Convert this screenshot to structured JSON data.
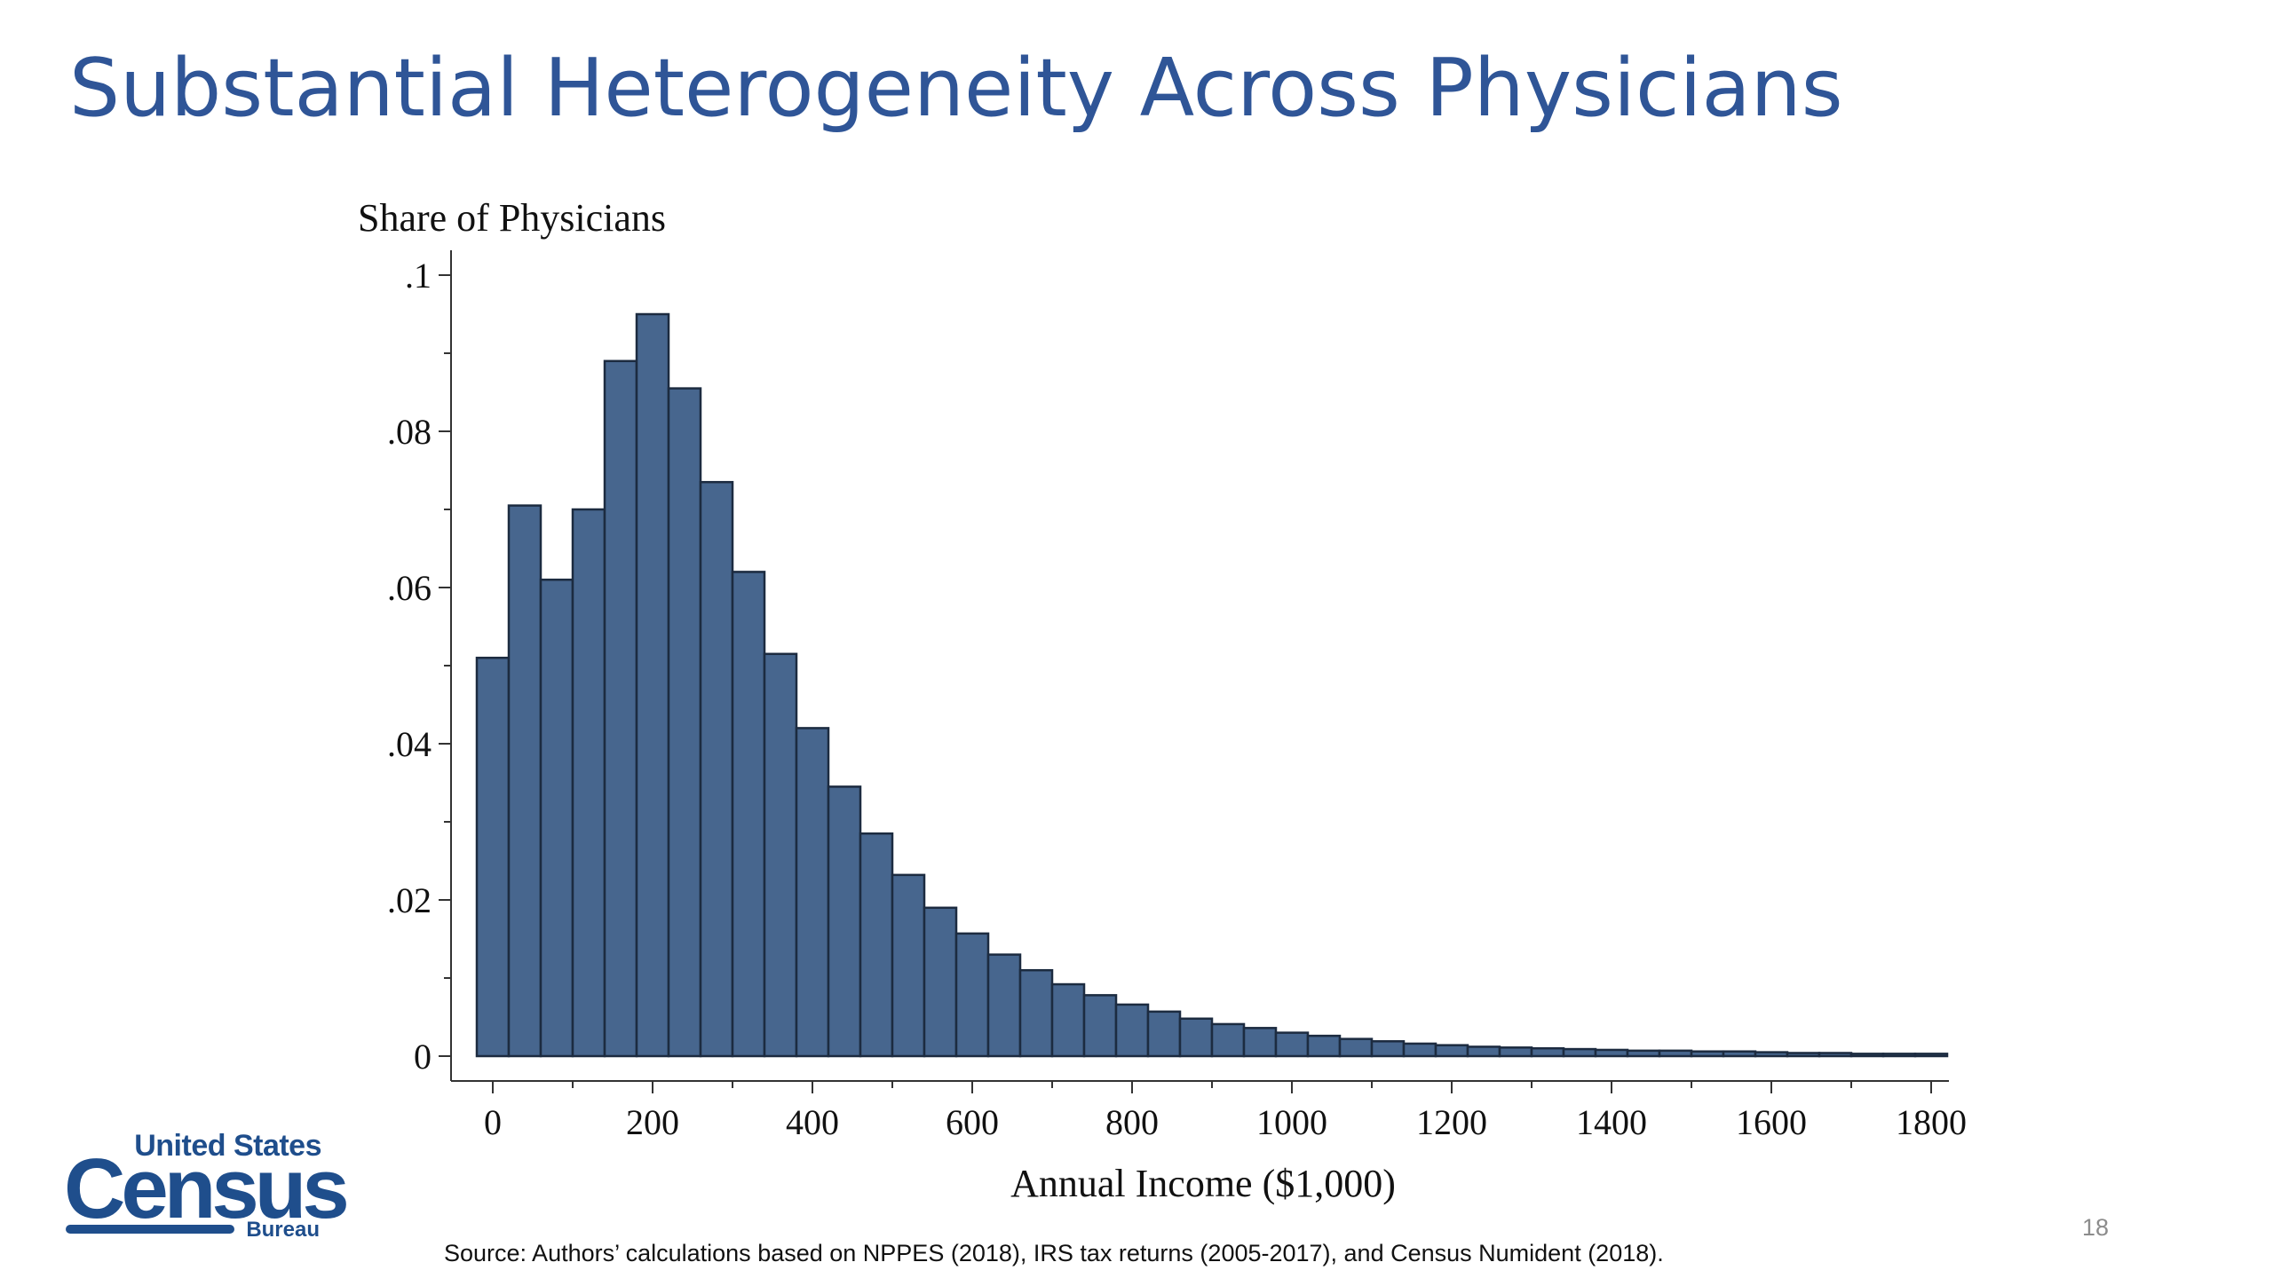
{
  "slide": {
    "title": "Substantial Heterogeneity Across Physicians",
    "source": "Source: Authors’ calculations based on NPPES (2018), IRS tax returns (2005-2017), and Census Numident (2018).",
    "page_number": "18"
  },
  "logo": {
    "line1": "United States",
    "word": "Census",
    "line3": "Bureau",
    "color": "#1F4E8C"
  },
  "colors": {
    "title": "#2F5597",
    "bar_fill": "#47668E",
    "bar_stroke": "#1C2B40"
  },
  "chart_data": {
    "type": "bar",
    "title": "",
    "xlabel": "Annual Income ($1,000)",
    "ylabel": "Share of Physicians",
    "xlim": [
      -20,
      1820
    ],
    "ylim": [
      0,
      0.1
    ],
    "bin_width": 40,
    "bin_start": -20,
    "x_ticks": [
      0,
      200,
      400,
      600,
      800,
      1000,
      1200,
      1400,
      1600,
      1800
    ],
    "x_tick_labels": [
      "0",
      "200",
      "400",
      "600",
      "800",
      "1000",
      "1200",
      "1400",
      "1600",
      "1800"
    ],
    "y_ticks": [
      0,
      0.02,
      0.04,
      0.06,
      0.08,
      0.1
    ],
    "y_tick_labels": [
      "0",
      ".02",
      ".04",
      ".06",
      ".08",
      ".1"
    ],
    "grid": false,
    "values": [
      0.051,
      0.0705,
      0.061,
      0.07,
      0.089,
      0.095,
      0.0855,
      0.0735,
      0.062,
      0.0515,
      0.042,
      0.0345,
      0.0285,
      0.0232,
      0.019,
      0.0157,
      0.013,
      0.011,
      0.0092,
      0.0078,
      0.0066,
      0.0057,
      0.0048,
      0.0041,
      0.0036,
      0.003,
      0.0026,
      0.0022,
      0.0019,
      0.0016,
      0.0014,
      0.0012,
      0.0011,
      0.001,
      0.0009,
      0.0008,
      0.0007,
      0.0007,
      0.0006,
      0.0006,
      0.0005,
      0.0004,
      0.0004,
      0.0003,
      0.0003,
      0.0003
    ]
  }
}
